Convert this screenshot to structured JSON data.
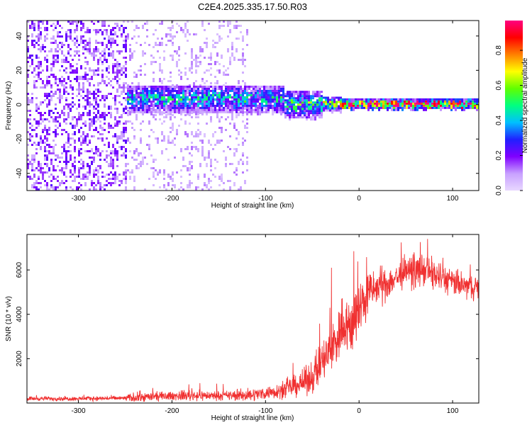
{
  "title": "C2E4.2025.335.17.50.R03",
  "chart_data": [
    {
      "type": "heatmap",
      "title": "",
      "xlabel": "Height of straight line (km)",
      "ylabel": "Frequency (Hz)",
      "xlim": [
        -355,
        128
      ],
      "ylim": [
        -50,
        49
      ],
      "x_ticks": [
        -300,
        -200,
        -100,
        0,
        100
      ],
      "y_ticks": [
        -40,
        -20,
        0,
        20,
        40
      ],
      "x_tick_labels": [
        "-300",
        "-200",
        "-100",
        "0",
        "100"
      ],
      "y_tick_labels": [
        "-40",
        "-20",
        "0",
        "20",
        "40"
      ],
      "colorbar": {
        "label": "Normalized spectral amplitude",
        "range": [
          0,
          0.97
        ],
        "ticks": [
          0.0,
          0.2,
          0.4,
          0.6,
          0.8
        ],
        "tick_labels": [
          "0.0",
          "0.2",
          "0.4",
          "0.6",
          "0.8"
        ],
        "colors": [
          "#e8d8ff",
          "#c8a0ff",
          "#8000ff",
          "#2020ff",
          "#00c0ff",
          "#00ff80",
          "#60ff00",
          "#ffff00",
          "#ff8000",
          "#ff0000",
          "#ff0080"
        ]
      },
      "bands": [
        {
          "x_start": -355,
          "x_end": -250,
          "freq_center": 0,
          "freq_half_width": 50,
          "amplitude": 0.15,
          "density": 0.85
        },
        {
          "x_start": -250,
          "x_end": -120,
          "freq_center": 0,
          "freq_half_width": 50,
          "amplitude": 0.08,
          "density": 0.4
        },
        {
          "x_start": -250,
          "x_end": -80,
          "freq_center": 3,
          "freq_half_width": 8,
          "amplitude": 0.3,
          "density": 0.9
        },
        {
          "x_start": -80,
          "x_end": -40,
          "freq_center": 0,
          "freq_half_width": 8,
          "amplitude": 0.35,
          "density": 0.85
        },
        {
          "x_start": -40,
          "x_end": -20,
          "freq_center": 0,
          "freq_half_width": 4,
          "amplitude": 0.45,
          "density": 0.9
        },
        {
          "x_start": -20,
          "x_end": 128,
          "freq_center": 0,
          "freq_half_width": 2.5,
          "amplitude": 0.75,
          "density": 1.0
        }
      ]
    },
    {
      "type": "line",
      "title": "",
      "xlabel": "Height of straight line (km)",
      "ylabel": "SNR (10 * v/v)",
      "xlim": [
        -355,
        128
      ],
      "ylim": [
        0,
        7600
      ],
      "x_ticks": [
        -300,
        -200,
        -100,
        0,
        100
      ],
      "y_ticks": [
        2000,
        4000,
        6000
      ],
      "x_tick_labels": [
        "-300",
        "-200",
        "-100",
        "0",
        "100"
      ],
      "y_tick_labels": [
        "2000",
        "4000",
        "6000"
      ],
      "color": "#f03030",
      "envelope": {
        "x": [
          -355,
          -300,
          -250,
          -240,
          -200,
          -180,
          -150,
          -120,
          -100,
          -80,
          -60,
          -50,
          -40,
          -30,
          -20,
          -15,
          -10,
          0,
          10,
          30,
          50,
          70,
          90,
          110,
          128
        ],
        "mean": [
          200,
          200,
          220,
          250,
          320,
          350,
          330,
          350,
          450,
          600,
          900,
          1200,
          1800,
          2400,
          3200,
          3800,
          3300,
          4200,
          5000,
          5400,
          5900,
          6000,
          5600,
          5300,
          5200
        ],
        "spread": [
          100,
          100,
          120,
          250,
          200,
          280,
          200,
          300,
          300,
          400,
          600,
          800,
          1000,
          1300,
          1500,
          1400,
          1400,
          1600,
          1000,
          800,
          700,
          800,
          700,
          600,
          600
        ]
      }
    }
  ]
}
